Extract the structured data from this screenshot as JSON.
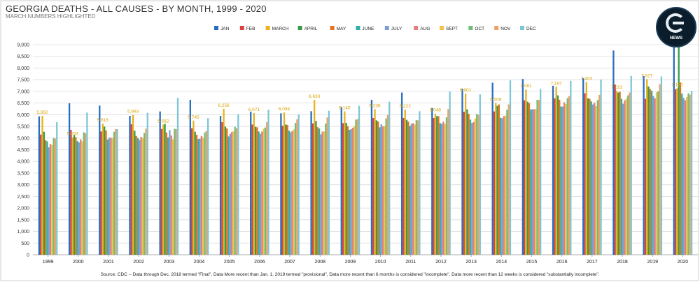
{
  "page": {
    "title": "GEORGIA DEATHS - ALL CAUSES - BY MONTH, 1999 - 2020",
    "subtitle": "MARCH NUMBERS HIGHLIGHTED",
    "logo_text": "NEWS",
    "source": "Source: CDC -- Data through Dec. 2018 termed \"Final\", Data More recent than Jan. 1, 2019 termed \"provisional\", Data more recent than 6 months is considered \"incomplete\", Data more recent than 12 weeks is considered \"substantially incomplete\"."
  },
  "chart_data": {
    "type": "bar",
    "ylim": [
      0,
      9000
    ],
    "yticks": [
      "0",
      "500",
      "1,000",
      "1,500",
      "2,000",
      "2,500",
      "3,000",
      "3,500",
      "4,000",
      "4,500",
      "5,000",
      "5,500",
      "6,000",
      "6,500",
      "7,000",
      "7,500",
      "8,000",
      "8,500",
      "9,000"
    ],
    "grid": true,
    "legend_position": "top",
    "categories": [
      "1999",
      "2000",
      "2001",
      "2002",
      "2003",
      "2004",
      "2005",
      "2006",
      "2007",
      "2008",
      "2009",
      "2010",
      "2011",
      "2012",
      "2013",
      "2014",
      "2015",
      "2016",
      "2017",
      "2018",
      "2019",
      "2020"
    ],
    "series": [
      {
        "name": "JAN",
        "color": "#2a6ebf",
        "values": [
          5930,
          6490,
          6390,
          5950,
          6140,
          6640,
          5950,
          6130,
          6060,
          6150,
          6330,
          6640,
          6950,
          6290,
          7110,
          7370,
          7530,
          7240,
          7560,
          8750,
          7660,
          8920
        ]
      },
      {
        "name": "FEB",
        "color": "#d9423f",
        "values": [
          5150,
          5350,
          5280,
          5590,
          5390,
          5420,
          5680,
          5580,
          5530,
          5630,
          5640,
          5860,
          5860,
          5860,
          6130,
          6140,
          6620,
          6700,
          6920,
          7290,
          6680,
          7090
        ]
      },
      {
        "name": "MARCH",
        "color": "#e8b31e",
        "values": [
          5950,
          5033,
          5616,
          5993,
          5582,
          5745,
          6256,
          6071,
          6094,
          6633,
          6140,
          6238,
          6222,
          6048,
          6901,
          6508,
          7081,
          7197,
          7403,
          7023,
          7527,
          7130
        ]
      },
      {
        "name": "APRIL",
        "color": "#3a9a45",
        "values": [
          5270,
          5130,
          5490,
          5310,
          5610,
          5270,
          5490,
          5480,
          5580,
          5730,
          5650,
          5760,
          5780,
          5940,
          6230,
          6380,
          6560,
          6830,
          6700,
          6950,
          7210,
          8940
        ]
      },
      {
        "name": "MAY",
        "color": "#e8701e",
        "values": [
          4910,
          5040,
          5330,
          5090,
          5240,
          5140,
          5410,
          5460,
          5560,
          5470,
          5510,
          5710,
          5700,
          5940,
          6040,
          6440,
          6490,
          6640,
          6680,
          6980,
          7100,
          7380
        ]
      },
      {
        "name": "JUNE",
        "color": "#2fb0a6",
        "values": [
          4860,
          4870,
          4940,
          5000,
          5030,
          4960,
          5070,
          5280,
          5320,
          5410,
          5350,
          5460,
          5520,
          5640,
          5790,
          5870,
          6220,
          6350,
          6570,
          6680,
          7030,
          6910
        ]
      },
      {
        "name": "JULY",
        "color": "#7a9fd8",
        "values": [
          4600,
          4810,
          5020,
          4920,
          5340,
          4980,
          5180,
          5180,
          5250,
          5160,
          5380,
          5590,
          5610,
          5610,
          5650,
          5850,
          6240,
          6350,
          6440,
          6470,
          6800,
          6720
        ]
      },
      {
        "name": "AUG",
        "color": "#e87b7b",
        "values": [
          4750,
          4950,
          5010,
          5050,
          5110,
          5090,
          5260,
          5280,
          5300,
          5280,
          5440,
          5500,
          5640,
          5700,
          5690,
          5940,
          6230,
          6530,
          6520,
          6620,
          6700,
          6620
        ]
      },
      {
        "name": "SEPT",
        "color": "#f2c24a",
        "values": [
          4700,
          4860,
          5000,
          5000,
          4950,
          5010,
          5290,
          5400,
          5370,
          5280,
          5520,
          5520,
          5580,
          5600,
          5840,
          5960,
          6250,
          6460,
          6370,
          6680,
          6960,
          6760
        ]
      },
      {
        "name": "OCT",
        "color": "#6fbf7a",
        "values": [
          5000,
          5250,
          5270,
          5220,
          5400,
          5240,
          5480,
          5450,
          5650,
          5620,
          5790,
          5840,
          5770,
          5890,
          6040,
          6210,
          6640,
          6710,
          6630,
          6830,
          7000,
          6920
        ]
      },
      {
        "name": "NOV",
        "color": "#f0a062",
        "values": [
          4980,
          5200,
          5380,
          5400,
          5380,
          5300,
          5420,
          5680,
          5800,
          5880,
          5810,
          5990,
          5760,
          6240,
          5990,
          6440,
          6630,
          6800,
          6850,
          6950,
          7310,
          6860
        ]
      },
      {
        "name": "DEC",
        "color": "#7ec6d6",
        "values": [
          5680,
          6090,
          5380,
          6080,
          6720,
          5850,
          6020,
          6210,
          6010,
          6170,
          6380,
          6560,
          6150,
          6990,
          6870,
          7470,
          7100,
          7450,
          7510,
          7660,
          7640,
          7020
        ]
      }
    ]
  }
}
